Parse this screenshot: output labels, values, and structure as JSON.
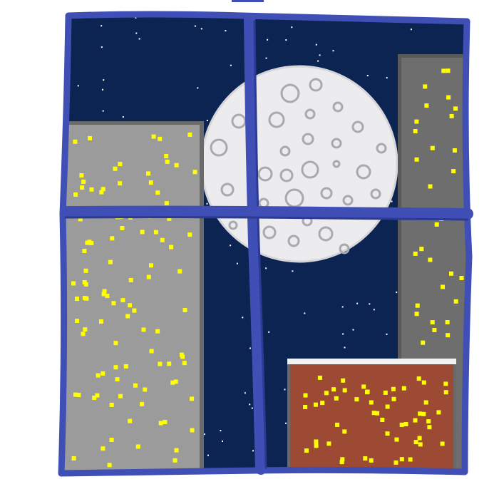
{
  "scene": {
    "subject": "night-city-window",
    "colors": {
      "background": "#ffffff",
      "sky": "#0b2452",
      "frame": "#3f4fb5",
      "frame_shadow": "#2d3a94",
      "moon": "#ececee",
      "moon_edge": "#d0d0d4",
      "crater": "#a9a9ae",
      "star": "#ffffff",
      "building_left": "#9b9b9b",
      "building_left_top": "#9a9a9a",
      "building_edge": "#6a6a6a",
      "building_right": "#6e6e6e",
      "building_brick": "#9c4a33",
      "brick_roof": "#f2f2f2",
      "window_light": "#ffff00"
    }
  }
}
